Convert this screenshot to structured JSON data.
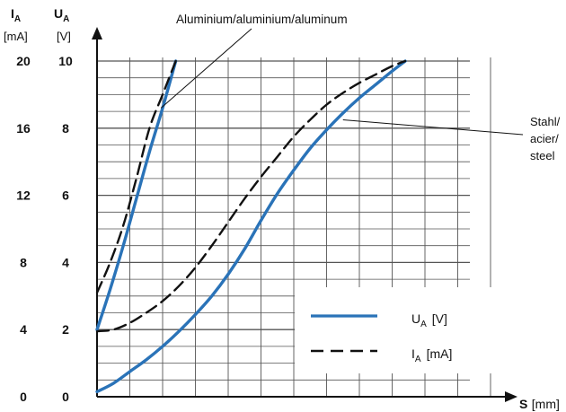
{
  "chart_data": {
    "type": "line",
    "left_axis": {
      "name_main": "I",
      "name_sub": "A",
      "unit": "[mA]",
      "ticks": [
        "0",
        "4",
        "8",
        "12",
        "16",
        "20"
      ],
      "ylim": [
        0,
        20
      ]
    },
    "right_axis": {
      "name_main": "U",
      "name_sub": "A",
      "unit": "[V]",
      "ticks": [
        "0",
        "2",
        "4",
        "6",
        "8",
        "10"
      ],
      "ylim": [
        0,
        10
      ]
    },
    "x_axis": {
      "name_main": "S",
      "unit": "[mm]",
      "tick_labels": []
    },
    "grid": true,
    "material_labels": {
      "aluminium": "Aluminium/aluminium/aluminum",
      "steel_1": "Stahl/",
      "steel_2": "acier/",
      "steel_3": "steel"
    },
    "legend": {
      "placement": "bottom-right",
      "items": [
        {
          "main": "U",
          "sub": "A",
          "unit": "[V]",
          "style": "solid",
          "color": "#2a73b8"
        },
        {
          "main": "I",
          "sub": "A",
          "unit": "[mA]",
          "style": "dashed",
          "color": "#111111"
        }
      ]
    },
    "series": [
      {
        "group": "aluminium",
        "style": "solid",
        "color": "#2a73b8",
        "x": [
          0,
          0.4,
          0.8,
          1.2,
          1.6,
          2.0,
          2.4
        ],
        "y": [
          2.0,
          3.2,
          4.5,
          5.9,
          7.3,
          8.6,
          10.0
        ]
      },
      {
        "group": "aluminium",
        "style": "dashed",
        "color": "#111111",
        "x": [
          0,
          0.4,
          0.8,
          1.2,
          1.6,
          2.0,
          2.4
        ],
        "y": [
          3.1,
          4.0,
          5.1,
          6.5,
          8.0,
          9.0,
          10.0
        ]
      },
      {
        "group": "steel",
        "style": "solid",
        "color": "#2a73b8",
        "x": [
          0,
          0.5,
          1.0,
          1.5,
          2.0,
          2.5,
          3.0,
          3.5,
          4.0,
          4.5,
          5.0,
          5.5,
          6.0,
          6.5,
          7.0,
          7.5,
          8.0,
          8.5,
          9.0,
          9.4
        ],
        "y": [
          0.15,
          0.4,
          0.75,
          1.1,
          1.5,
          1.95,
          2.45,
          3.0,
          3.65,
          4.4,
          5.25,
          6.05,
          6.75,
          7.4,
          7.95,
          8.45,
          8.9,
          9.3,
          9.7,
          10.0
        ]
      },
      {
        "group": "steel",
        "style": "dashed",
        "color": "#111111",
        "x": [
          0,
          0.5,
          1.0,
          1.5,
          2.0,
          2.5,
          3.0,
          3.5,
          4.0,
          4.5,
          5.0,
          5.5,
          6.0,
          6.5,
          7.0,
          7.5,
          8.0,
          8.5,
          9.0,
          9.4
        ],
        "y": [
          1.95,
          2.0,
          2.2,
          2.5,
          2.85,
          3.3,
          3.85,
          4.5,
          5.2,
          5.9,
          6.55,
          7.15,
          7.75,
          8.25,
          8.7,
          9.05,
          9.35,
          9.6,
          9.85,
          10.0
        ]
      }
    ]
  }
}
